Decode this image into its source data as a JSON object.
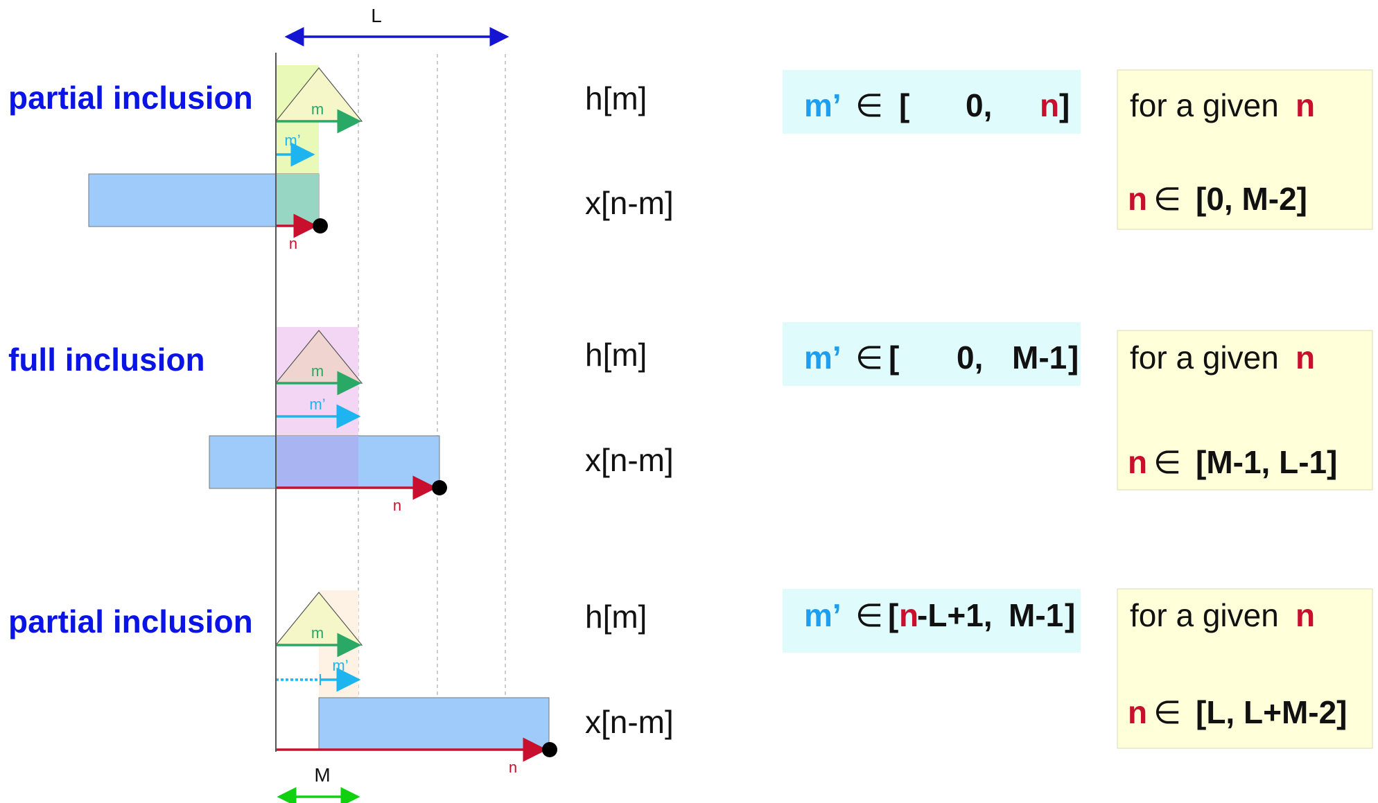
{
  "top_label": "L",
  "bottom_label": "M",
  "colors": {
    "title": "#0a14e6",
    "red": "#c8102e",
    "cyan": "#1e9ef0",
    "green": "#2aa866",
    "blue_arrow": "#1414d2",
    "green_arrow": "#10d010",
    "cyan_box": "#e0fbfc",
    "yellow_box": "#ffffd9",
    "x_rect": "#9ecbfa"
  },
  "rows": [
    {
      "title": "partial inclusion",
      "h_label": "h[m]",
      "x_label": "x[n-m]",
      "m_label": "m",
      "mp_label": "m’",
      "n_label": "n",
      "range": {
        "var": "m’",
        "elem": "∈",
        "open": "[",
        "lo": "0,",
        "hi": "n",
        "close": "]"
      },
      "given": {
        "text": "for a given",
        "var": "n",
        "elem": "∈",
        "range": "[0, M-2]"
      }
    },
    {
      "title": "full inclusion",
      "h_label": "h[m]",
      "x_label": "x[n-m]",
      "m_label": "m",
      "mp_label": "m’",
      "n_label": "n",
      "range": {
        "var": "m’",
        "elem": "∈",
        "open": "[",
        "lo": "0,",
        "hi": "M-1",
        "close": "]"
      },
      "given": {
        "text": "for a given",
        "var": "n",
        "elem": "∈",
        "range": "[M-1, L-1]"
      }
    },
    {
      "title": "partial inclusion",
      "h_label": "h[m]",
      "x_label": "x[n-m]",
      "m_label": "m",
      "mp_label": "m’",
      "n_label": "n",
      "range": {
        "var": "m’",
        "elem": "∈",
        "open": "[",
        "n": "n",
        "lo": "-L+1,",
        "hi": "M-1",
        "close": "]"
      },
      "given": {
        "text": "for a given",
        "var": "n",
        "elem": "∈",
        "range": "[L, L+M-2]"
      }
    }
  ]
}
